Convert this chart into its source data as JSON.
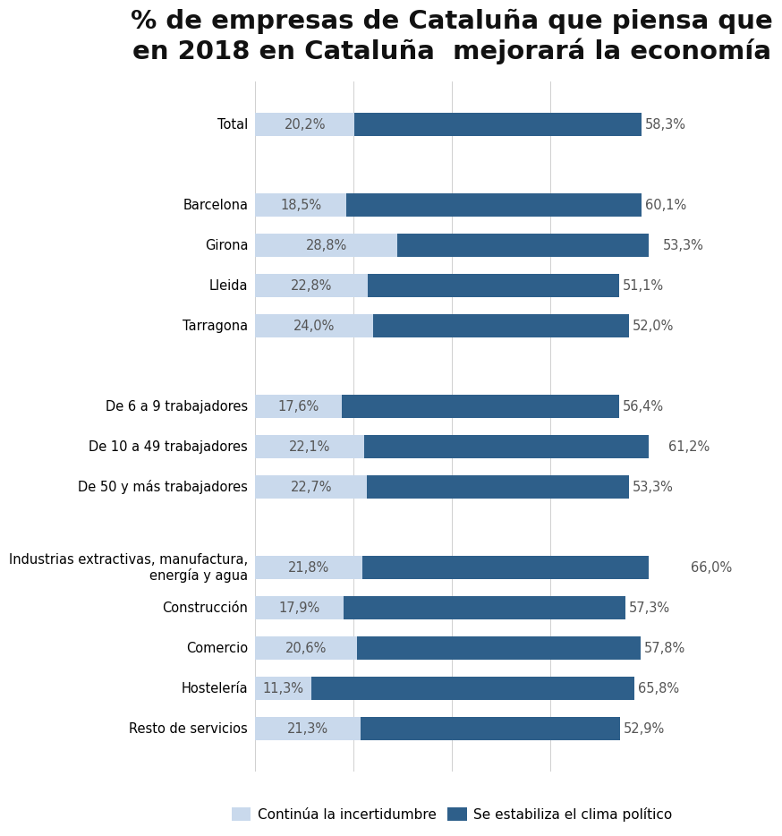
{
  "title": "% de empresas de Cataluña que piensa que\nen 2018 en Cataluña  mejorará la economía",
  "categories": [
    "Total",
    "  ",
    "Barcelona",
    "Girona",
    "Lleida",
    "Tarragona",
    " ",
    "De 6 a 9 trabajadores",
    "De 10 a 49 trabajadores",
    "De 50 y más trabajadores",
    "",
    "Industrias extractivas, manufactura,\nenergía y agua",
    "Construcción",
    "Comercio",
    "Hostelería",
    "Resto de servicios"
  ],
  "light_values": [
    20.2,
    0,
    18.5,
    28.8,
    22.8,
    24.0,
    0,
    17.6,
    22.1,
    22.7,
    0,
    21.8,
    17.9,
    20.6,
    11.3,
    21.3
  ],
  "dark_values": [
    58.3,
    0,
    60.1,
    53.3,
    51.1,
    52.0,
    0,
    56.4,
    61.2,
    53.3,
    0,
    66.0,
    57.3,
    57.8,
    65.8,
    52.9
  ],
  "light_labels": [
    "20,2%",
    "",
    "18,5%",
    "28,8%",
    "22,8%",
    "24,0%",
    "",
    "17,6%",
    "22,1%",
    "22,7%",
    "",
    "21,8%",
    "17,9%",
    "20,6%",
    "11,3%",
    "21,3%"
  ],
  "dark_labels": [
    "58,3%",
    "",
    "60,1%",
    "53,3%",
    "51,1%",
    "52,0%",
    "",
    "56,4%",
    "61,2%",
    "53,3%",
    "",
    "66,0%",
    "57,3%",
    "57,8%",
    "65,8%",
    "52,9%"
  ],
  "light_color": "#c9d9ec",
  "dark_color": "#2e5f8a",
  "legend_light": "Continúa la incertidumbre",
  "legend_dark": "Se estabiliza el clima político",
  "bg_color": "#ffffff",
  "bar_height": 0.58,
  "xlim_max": 80,
  "title_fontsize": 21,
  "label_fontsize": 10.5,
  "tick_fontsize": 10.5,
  "legend_fontsize": 11
}
